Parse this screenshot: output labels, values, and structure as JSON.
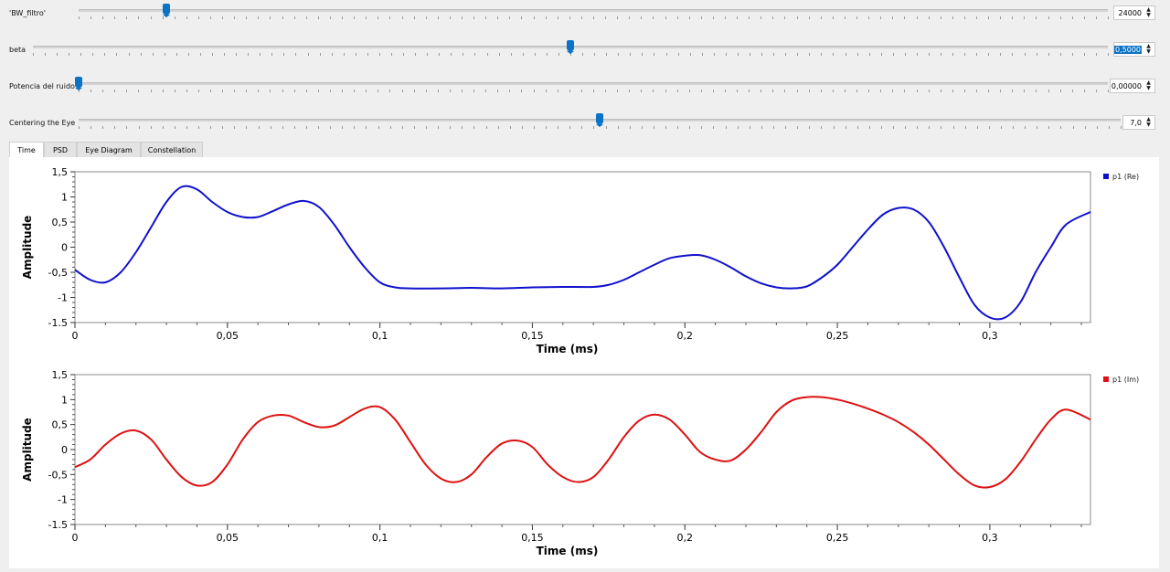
{
  "controls": [
    {
      "label": "'BW_filtro'",
      "value": "24000",
      "selected": false,
      "level": 0.085
    },
    {
      "label": "beta",
      "value": "0,5000",
      "selected": true,
      "level": 0.5
    },
    {
      "label": "Potencia del ruido",
      "value": "0,00000",
      "selected": false,
      "level": 0.0
    },
    {
      "label": "Centering the Eye",
      "value": "7,0",
      "selected": false,
      "level": 0.5
    }
  ],
  "tabs": [
    {
      "label": "Time",
      "active": true
    },
    {
      "label": "PSD",
      "active": false
    },
    {
      "label": "Eye Diagram",
      "active": false
    },
    {
      "label": "Constellation",
      "active": false
    }
  ],
  "chart_data": [
    {
      "type": "line",
      "title": "",
      "xlabel": "Time (ms)",
      "ylabel": "Amplitude",
      "xlim": [
        0,
        0.333
      ],
      "ylim": [
        -1.5,
        1.5
      ],
      "xticks": [
        "0",
        "0,05",
        "0,1",
        "0,15",
        "0,2",
        "0,25",
        "0,3"
      ],
      "yticks": [
        "1,5",
        "1",
        "0,5",
        "0",
        "-0,5",
        "-1",
        "-1.5"
      ],
      "legend": "top-right",
      "grid": false,
      "series": [
        {
          "name": "p1 (Re)",
          "color": "#1010cc",
          "x": [
            0,
            0.005,
            0.01,
            0.015,
            0.02,
            0.025,
            0.03,
            0.035,
            0.04,
            0.045,
            0.05,
            0.055,
            0.06,
            0.065,
            0.07,
            0.075,
            0.08,
            0.085,
            0.09,
            0.095,
            0.1,
            0.105,
            0.11,
            0.12,
            0.13,
            0.14,
            0.15,
            0.16,
            0.17,
            0.175,
            0.18,
            0.185,
            0.19,
            0.195,
            0.2,
            0.205,
            0.21,
            0.215,
            0.22,
            0.225,
            0.23,
            0.235,
            0.24,
            0.245,
            0.25,
            0.255,
            0.26,
            0.265,
            0.27,
            0.275,
            0.28,
            0.285,
            0.29,
            0.295,
            0.3,
            0.305,
            0.31,
            0.315,
            0.32,
            0.325,
            0.333
          ],
          "y": [
            -0.45,
            -0.65,
            -0.7,
            -0.5,
            -0.1,
            0.4,
            0.9,
            1.2,
            1.15,
            0.9,
            0.7,
            0.6,
            0.6,
            0.72,
            0.85,
            0.92,
            0.8,
            0.45,
            0.0,
            -0.4,
            -0.7,
            -0.8,
            -0.82,
            -0.82,
            -0.81,
            -0.82,
            -0.8,
            -0.79,
            -0.79,
            -0.75,
            -0.65,
            -0.5,
            -0.35,
            -0.22,
            -0.17,
            -0.16,
            -0.25,
            -0.4,
            -0.58,
            -0.72,
            -0.8,
            -0.82,
            -0.78,
            -0.6,
            -0.35,
            0.0,
            0.35,
            0.65,
            0.78,
            0.75,
            0.5,
            0.0,
            -0.6,
            -1.15,
            -1.4,
            -1.4,
            -1.1,
            -0.5,
            0.0,
            0.45,
            0.7
          ]
        }
      ]
    },
    {
      "type": "line",
      "title": "",
      "xlabel": "Time (ms)",
      "ylabel": "Amplitude",
      "xlim": [
        0,
        0.333
      ],
      "ylim": [
        -1.5,
        1.5
      ],
      "xticks": [
        "0",
        "0,05",
        "0,1",
        "0,15",
        "0,2",
        "0,25",
        "0,3"
      ],
      "yticks": [
        "1,5",
        "1",
        "0,5",
        "0",
        "-0,5",
        "-1",
        "-1.5"
      ],
      "legend": "top-right",
      "grid": false,
      "series": [
        {
          "name": "p1 (Im)",
          "color": "#dd1111",
          "x": [
            0,
            0.005,
            0.01,
            0.015,
            0.02,
            0.025,
            0.03,
            0.035,
            0.04,
            0.045,
            0.05,
            0.055,
            0.06,
            0.065,
            0.07,
            0.075,
            0.08,
            0.085,
            0.09,
            0.095,
            0.1,
            0.105,
            0.11,
            0.115,
            0.12,
            0.125,
            0.13,
            0.135,
            0.14,
            0.145,
            0.15,
            0.155,
            0.16,
            0.165,
            0.17,
            0.175,
            0.18,
            0.185,
            0.19,
            0.195,
            0.2,
            0.205,
            0.21,
            0.215,
            0.22,
            0.225,
            0.23,
            0.235,
            0.24,
            0.245,
            0.25,
            0.255,
            0.26,
            0.265,
            0.27,
            0.275,
            0.28,
            0.285,
            0.29,
            0.295,
            0.3,
            0.305,
            0.31,
            0.315,
            0.32,
            0.325,
            0.333
          ],
          "y": [
            -0.35,
            -0.2,
            0.1,
            0.32,
            0.38,
            0.2,
            -0.2,
            -0.55,
            -0.72,
            -0.65,
            -0.3,
            0.2,
            0.55,
            0.68,
            0.68,
            0.55,
            0.45,
            0.48,
            0.65,
            0.82,
            0.85,
            0.6,
            0.15,
            -0.3,
            -0.58,
            -0.65,
            -0.5,
            -0.15,
            0.12,
            0.18,
            0.05,
            -0.3,
            -0.55,
            -0.65,
            -0.55,
            -0.2,
            0.25,
            0.58,
            0.7,
            0.6,
            0.3,
            -0.05,
            -0.2,
            -0.22,
            0.0,
            0.35,
            0.75,
            0.98,
            1.05,
            1.05,
            1.0,
            0.92,
            0.82,
            0.7,
            0.55,
            0.35,
            0.1,
            -0.2,
            -0.5,
            -0.72,
            -0.75,
            -0.6,
            -0.25,
            0.2,
            0.6,
            0.8,
            0.6
          ]
        }
      ]
    }
  ]
}
